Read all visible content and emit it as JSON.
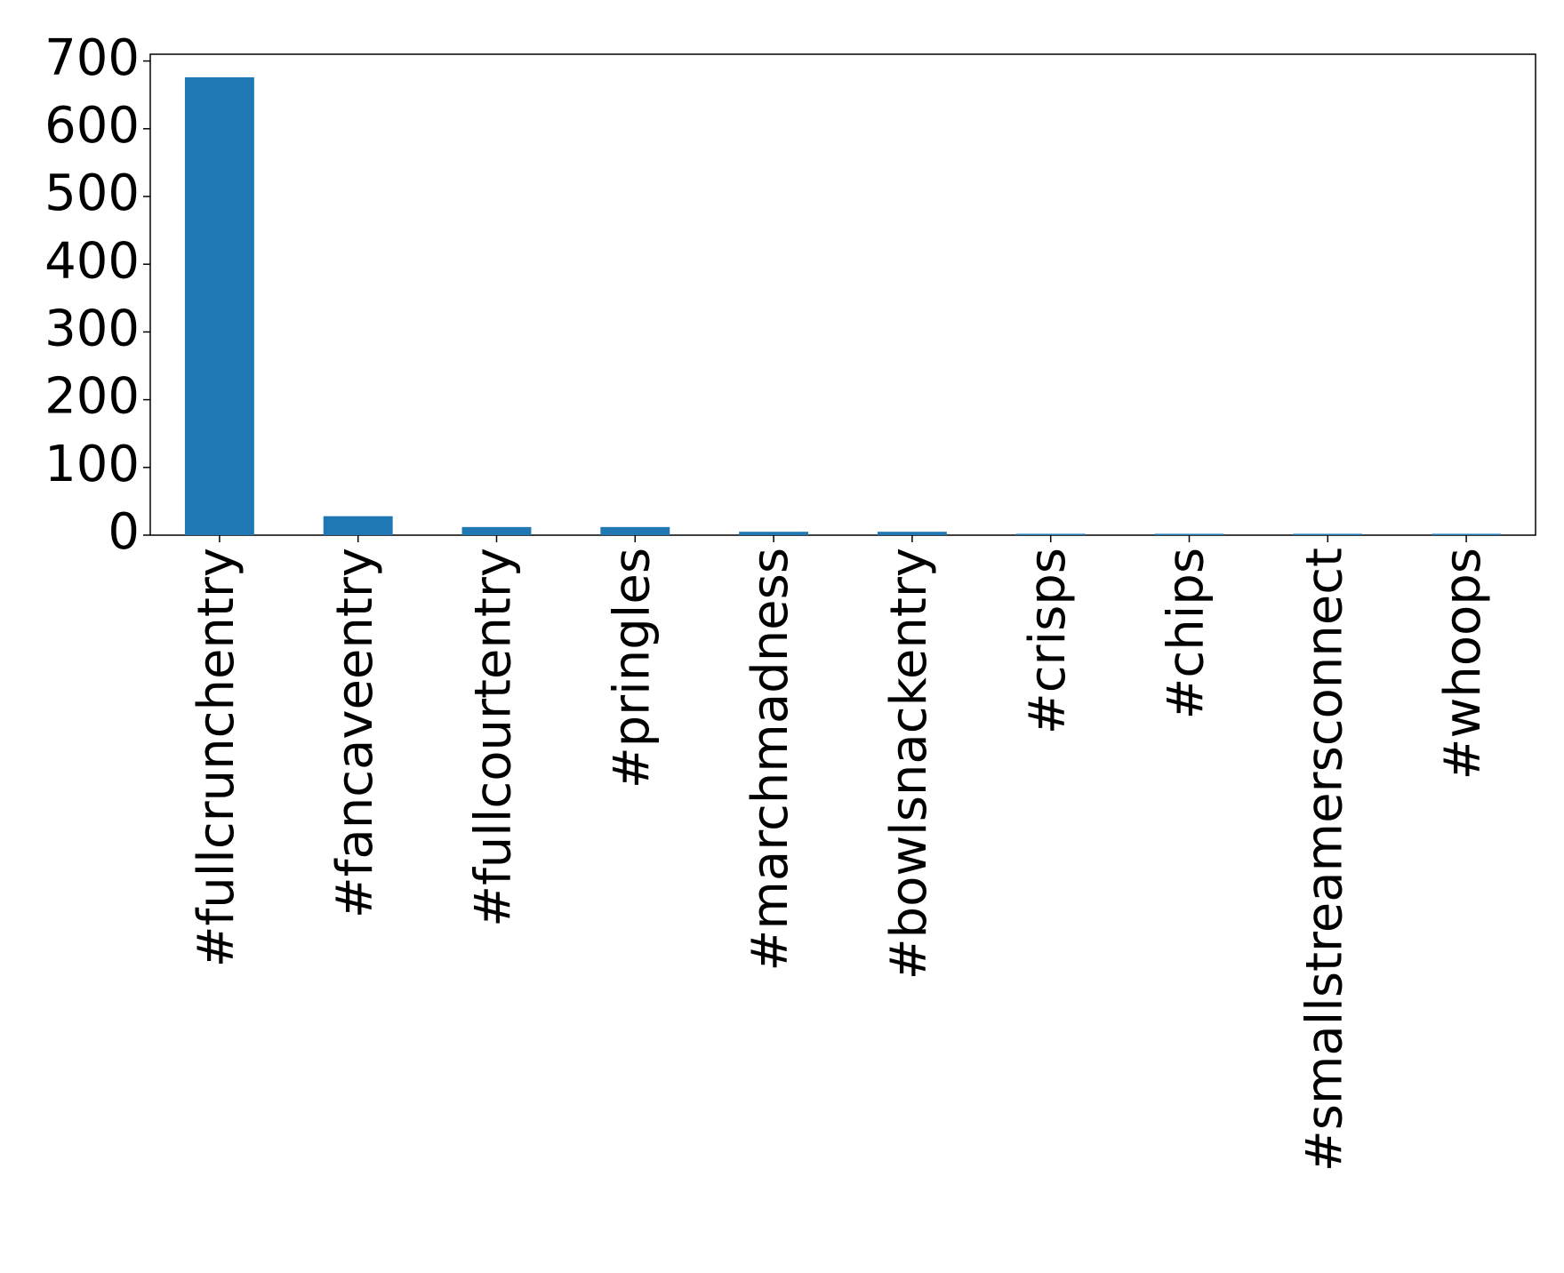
{
  "chart_data": {
    "type": "bar",
    "categories": [
      "#fullcrunchentry",
      "#fancaveentry",
      "#fullcourtentry",
      "#pringles",
      "#marchmadness",
      "#bowlsnackentry",
      "#crisps",
      "#chips",
      "#smallstreamersconnect",
      "#whoops"
    ],
    "values": [
      676,
      28,
      12,
      12,
      5,
      5,
      2,
      2,
      2,
      2
    ],
    "color": "#1f77b4",
    "ylim": [
      0,
      710
    ],
    "yticks": [
      0,
      100,
      200,
      300,
      400,
      500,
      600,
      700
    ],
    "grid": false
  }
}
